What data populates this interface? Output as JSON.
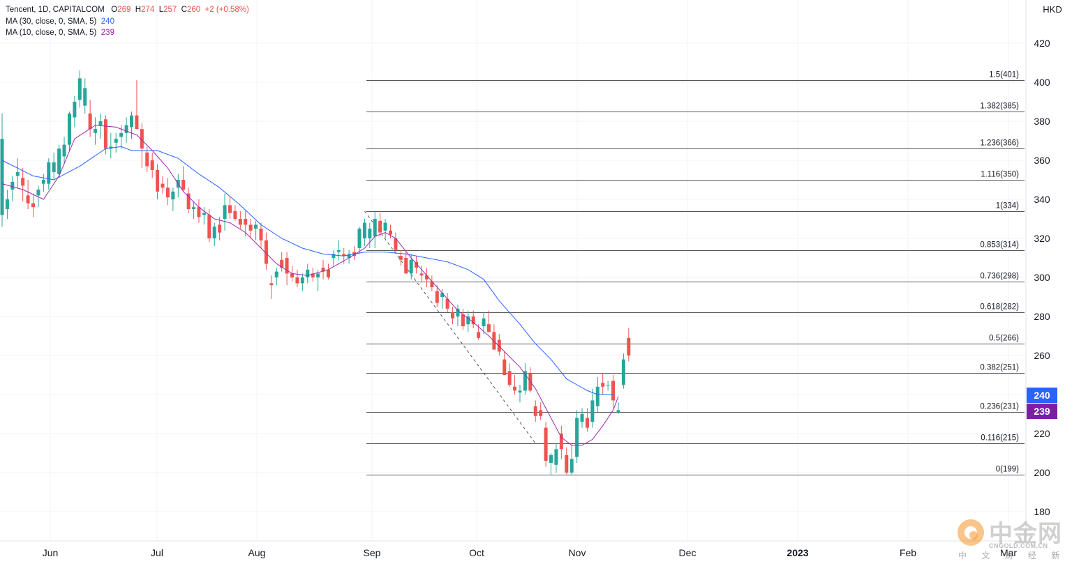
{
  "legend": {
    "symbol": "Tencent, 1D, CAPITALCOM",
    "o_label": "O",
    "o": "269",
    "h_label": "H",
    "h": "274",
    "l_label": "L",
    "l": "257",
    "c_label": "C",
    "c": "260",
    "change": "+2 (+0.58%)",
    "ma30_label": "MA (30, close, 0, SMA, 5)",
    "ma30_value": "240",
    "ma10_label": "MA (10, close, 0, SMA, 5)",
    "ma10_value": "239"
  },
  "watermark": {
    "brand": "中金网",
    "url": "CNGOLD.COM.CN",
    "tagline": "中 文 财 经 新 媒 体"
  },
  "colors": {
    "up": "#26a69a",
    "down": "#ef5350",
    "ma30": "#2962ff",
    "ma10": "#9c27b0",
    "fib_line": "#555555",
    "grid": "#f0f3fa"
  },
  "chart_data": {
    "type": "candlestick",
    "title": "Tencent, 1D, CAPITALCOM",
    "currency": "HKD",
    "y_ticks": [
      180,
      200,
      220,
      240,
      260,
      280,
      300,
      320,
      340,
      360,
      380,
      400,
      420
    ],
    "ylim": [
      173,
      443
    ],
    "x_ticks": [
      "Jun",
      "Jul",
      "Aug",
      "Sep",
      "Oct",
      "Nov",
      "Dec",
      "2023",
      "Feb",
      "Mar"
    ],
    "candles": [
      {
        "o": 332,
        "h": 384,
        "l": 326,
        "c": 371
      },
      {
        "o": 335,
        "h": 345,
        "l": 330,
        "c": 340
      },
      {
        "o": 345,
        "h": 352,
        "l": 339,
        "c": 349
      },
      {
        "o": 352,
        "h": 361,
        "l": 346,
        "c": 354
      },
      {
        "o": 351,
        "h": 356,
        "l": 339,
        "c": 347
      },
      {
        "o": 342,
        "h": 350,
        "l": 335,
        "c": 338
      },
      {
        "o": 338,
        "h": 343,
        "l": 331,
        "c": 336
      },
      {
        "o": 342,
        "h": 347,
        "l": 336,
        "c": 345
      },
      {
        "o": 348,
        "h": 353,
        "l": 344,
        "c": 350
      },
      {
        "o": 348,
        "h": 361,
        "l": 345,
        "c": 359
      },
      {
        "o": 354,
        "h": 364,
        "l": 350,
        "c": 359
      },
      {
        "o": 353,
        "h": 368,
        "l": 351,
        "c": 366
      },
      {
        "o": 362,
        "h": 372,
        "l": 358,
        "c": 368
      },
      {
        "o": 368,
        "h": 385,
        "l": 365,
        "c": 384
      },
      {
        "o": 382,
        "h": 393,
        "l": 377,
        "c": 390
      },
      {
        "o": 391,
        "h": 406,
        "l": 387,
        "c": 402
      },
      {
        "o": 388,
        "h": 402,
        "l": 384,
        "c": 397
      },
      {
        "o": 384,
        "h": 391,
        "l": 372,
        "c": 376
      },
      {
        "o": 374,
        "h": 382,
        "l": 368,
        "c": 376
      },
      {
        "o": 378,
        "h": 384,
        "l": 371,
        "c": 380
      },
      {
        "o": 381,
        "h": 383,
        "l": 363,
        "c": 366
      },
      {
        "o": 366,
        "h": 374,
        "l": 361,
        "c": 367
      },
      {
        "o": 369,
        "h": 374,
        "l": 364,
        "c": 371
      },
      {
        "o": 372,
        "h": 378,
        "l": 366,
        "c": 374
      },
      {
        "o": 374,
        "h": 382,
        "l": 369,
        "c": 378
      },
      {
        "o": 377,
        "h": 385,
        "l": 371,
        "c": 383
      },
      {
        "o": 383,
        "h": 401,
        "l": 376,
        "c": 376
      },
      {
        "o": 376,
        "h": 379,
        "l": 356,
        "c": 366
      },
      {
        "o": 364,
        "h": 367,
        "l": 354,
        "c": 357
      },
      {
        "o": 360,
        "h": 364,
        "l": 351,
        "c": 355
      },
      {
        "o": 355,
        "h": 358,
        "l": 340,
        "c": 344
      },
      {
        "o": 348,
        "h": 352,
        "l": 343,
        "c": 346
      },
      {
        "o": 346,
        "h": 351,
        "l": 337,
        "c": 341
      },
      {
        "o": 340,
        "h": 346,
        "l": 334,
        "c": 344
      },
      {
        "o": 346,
        "h": 353,
        "l": 341,
        "c": 350
      },
      {
        "o": 350,
        "h": 357,
        "l": 344,
        "c": 345
      },
      {
        "o": 343,
        "h": 346,
        "l": 333,
        "c": 335
      },
      {
        "o": 335,
        "h": 339,
        "l": 330,
        "c": 336
      },
      {
        "o": 336,
        "h": 340,
        "l": 328,
        "c": 331
      },
      {
        "o": 332,
        "h": 336,
        "l": 327,
        "c": 333
      },
      {
        "o": 332,
        "h": 335,
        "l": 318,
        "c": 320
      },
      {
        "o": 320,
        "h": 328,
        "l": 316,
        "c": 326
      },
      {
        "o": 327,
        "h": 331,
        "l": 319,
        "c": 323
      },
      {
        "o": 330,
        "h": 343,
        "l": 324,
        "c": 337
      },
      {
        "o": 337,
        "h": 341,
        "l": 330,
        "c": 333
      },
      {
        "o": 334,
        "h": 337,
        "l": 329,
        "c": 330
      },
      {
        "o": 330,
        "h": 334,
        "l": 325,
        "c": 327
      },
      {
        "o": 330,
        "h": 334,
        "l": 321,
        "c": 327
      },
      {
        "o": 327,
        "h": 330,
        "l": 320,
        "c": 324
      },
      {
        "o": 325,
        "h": 329,
        "l": 319,
        "c": 327
      },
      {
        "o": 325,
        "h": 328,
        "l": 315,
        "c": 319
      },
      {
        "o": 319,
        "h": 323,
        "l": 304,
        "c": 307
      },
      {
        "o": 297,
        "h": 301,
        "l": 289,
        "c": 296
      },
      {
        "o": 300,
        "h": 305,
        "l": 296,
        "c": 303
      },
      {
        "o": 309,
        "h": 313,
        "l": 303,
        "c": 305
      },
      {
        "o": 310,
        "h": 313,
        "l": 296,
        "c": 302
      },
      {
        "o": 302,
        "h": 306,
        "l": 298,
        "c": 300
      },
      {
        "o": 300,
        "h": 304,
        "l": 295,
        "c": 297
      },
      {
        "o": 297,
        "h": 302,
        "l": 293,
        "c": 300
      },
      {
        "o": 300,
        "h": 307,
        "l": 297,
        "c": 304
      },
      {
        "o": 302,
        "h": 305,
        "l": 298,
        "c": 300
      },
      {
        "o": 300,
        "h": 304,
        "l": 293,
        "c": 302
      },
      {
        "o": 305,
        "h": 309,
        "l": 299,
        "c": 303
      },
      {
        "o": 304,
        "h": 307,
        "l": 299,
        "c": 300
      },
      {
        "o": 310,
        "h": 314,
        "l": 306,
        "c": 312
      },
      {
        "o": 313,
        "h": 319,
        "l": 309,
        "c": 314
      },
      {
        "o": 312,
        "h": 315,
        "l": 307,
        "c": 311
      },
      {
        "o": 310,
        "h": 314,
        "l": 307,
        "c": 312
      },
      {
        "o": 313,
        "h": 316,
        "l": 309,
        "c": 311
      },
      {
        "o": 315,
        "h": 326,
        "l": 312,
        "c": 325
      },
      {
        "o": 320,
        "h": 330,
        "l": 316,
        "c": 328
      },
      {
        "o": 320,
        "h": 328,
        "l": 315,
        "c": 325
      },
      {
        "o": 321,
        "h": 334,
        "l": 315,
        "c": 330
      },
      {
        "o": 329,
        "h": 333,
        "l": 321,
        "c": 323
      },
      {
        "o": 324,
        "h": 330,
        "l": 320,
        "c": 328
      },
      {
        "o": 324,
        "h": 327,
        "l": 320,
        "c": 322
      },
      {
        "o": 320,
        "h": 323,
        "l": 312,
        "c": 314
      },
      {
        "o": 311,
        "h": 314,
        "l": 306,
        "c": 309
      },
      {
        "o": 310,
        "h": 314,
        "l": 302,
        "c": 302
      },
      {
        "o": 302,
        "h": 312,
        "l": 299,
        "c": 309
      },
      {
        "o": 308,
        "h": 311,
        "l": 302,
        "c": 305
      },
      {
        "o": 302,
        "h": 306,
        "l": 298,
        "c": 301
      },
      {
        "o": 301,
        "h": 305,
        "l": 295,
        "c": 299
      },
      {
        "o": 298,
        "h": 301,
        "l": 293,
        "c": 295
      },
      {
        "o": 293,
        "h": 296,
        "l": 285,
        "c": 287
      },
      {
        "o": 290,
        "h": 294,
        "l": 284,
        "c": 292
      },
      {
        "o": 289,
        "h": 292,
        "l": 282,
        "c": 284
      },
      {
        "o": 282,
        "h": 285,
        "l": 276,
        "c": 279
      },
      {
        "o": 280,
        "h": 286,
        "l": 275,
        "c": 284
      },
      {
        "o": 281,
        "h": 284,
        "l": 273,
        "c": 275
      },
      {
        "o": 276,
        "h": 283,
        "l": 272,
        "c": 280
      },
      {
        "o": 280,
        "h": 283,
        "l": 274,
        "c": 276
      },
      {
        "o": 272,
        "h": 276,
        "l": 268,
        "c": 269
      },
      {
        "o": 275,
        "h": 282,
        "l": 271,
        "c": 279
      },
      {
        "o": 276,
        "h": 283,
        "l": 272,
        "c": 272
      },
      {
        "o": 272,
        "h": 276,
        "l": 263,
        "c": 263
      },
      {
        "o": 268,
        "h": 271,
        "l": 260,
        "c": 262
      },
      {
        "o": 258,
        "h": 262,
        "l": 250,
        "c": 250
      },
      {
        "o": 252,
        "h": 256,
        "l": 244,
        "c": 245
      },
      {
        "o": 244,
        "h": 250,
        "l": 240,
        "c": 242
      },
      {
        "o": 241,
        "h": 245,
        "l": 236,
        "c": 242
      },
      {
        "o": 242,
        "h": 256,
        "l": 240,
        "c": 252
      },
      {
        "o": 251,
        "h": 254,
        "l": 241,
        "c": 242
      },
      {
        "o": 234,
        "h": 237,
        "l": 226,
        "c": 229
      },
      {
        "o": 232,
        "h": 236,
        "l": 227,
        "c": 229
      },
      {
        "o": 223,
        "h": 226,
        "l": 203,
        "c": 206
      },
      {
        "o": 205,
        "h": 210,
        "l": 199,
        "c": 209
      },
      {
        "o": 204,
        "h": 215,
        "l": 200,
        "c": 212
      },
      {
        "o": 220,
        "h": 224,
        "l": 207,
        "c": 212
      },
      {
        "o": 209,
        "h": 213,
        "l": 199,
        "c": 200
      },
      {
        "o": 200,
        "h": 214,
        "l": 199,
        "c": 207
      },
      {
        "o": 208,
        "h": 232,
        "l": 205,
        "c": 228
      },
      {
        "o": 226,
        "h": 233,
        "l": 223,
        "c": 230
      },
      {
        "o": 228,
        "h": 233,
        "l": 221,
        "c": 223
      },
      {
        "o": 226,
        "h": 243,
        "l": 223,
        "c": 237
      },
      {
        "o": 234,
        "h": 249,
        "l": 231,
        "c": 244
      },
      {
        "o": 246,
        "h": 251,
        "l": 240,
        "c": 244
      },
      {
        "o": 245,
        "h": 247,
        "l": 242,
        "c": 245
      },
      {
        "o": 247,
        "h": 250,
        "l": 233,
        "c": 237
      },
      {
        "o": 231,
        "h": 236,
        "l": 230,
        "c": 232
      },
      {
        "o": 245,
        "h": 261,
        "l": 243,
        "c": 258
      },
      {
        "o": 269,
        "h": 274,
        "l": 257,
        "c": 260
      }
    ],
    "series": [
      {
        "name": "MA (30, close, 0, SMA, 5)",
        "values": [
          [
            0,
            360
          ],
          [
            6,
            352
          ],
          [
            10,
            350
          ],
          [
            15,
            357
          ],
          [
            20,
            366
          ],
          [
            23,
            367
          ],
          [
            25,
            365
          ],
          [
            30,
            365
          ],
          [
            34,
            361
          ],
          [
            38,
            353
          ],
          [
            42,
            346
          ],
          [
            46,
            337
          ],
          [
            50,
            327
          ],
          [
            54,
            320
          ],
          [
            58,
            315
          ],
          [
            62,
            312
          ],
          [
            66,
            311
          ],
          [
            70,
            313
          ],
          [
            74,
            313
          ],
          [
            78,
            312
          ],
          [
            82,
            310
          ],
          [
            86,
            308
          ],
          [
            90,
            304
          ],
          [
            93,
            299
          ],
          [
            96,
            288
          ],
          [
            100,
            276
          ],
          [
            103,
            266
          ],
          [
            106,
            258
          ],
          [
            109,
            248
          ],
          [
            111,
            245
          ],
          [
            113,
            242
          ],
          [
            115,
            240
          ],
          [
            118,
            240
          ]
        ]
      },
      {
        "name": "MA (10, close, 0, SMA, 5)",
        "values": [
          [
            0,
            348
          ],
          [
            4,
            345
          ],
          [
            8,
            340
          ],
          [
            11,
            352
          ],
          [
            14,
            371
          ],
          [
            18,
            378
          ],
          [
            22,
            377
          ],
          [
            26,
            373
          ],
          [
            29,
            365
          ],
          [
            32,
            356
          ],
          [
            35,
            344
          ],
          [
            38,
            336
          ],
          [
            41,
            330
          ],
          [
            44,
            328
          ],
          [
            47,
            323
          ],
          [
            50,
            315
          ],
          [
            53,
            307
          ],
          [
            56,
            302
          ],
          [
            59,
            301
          ],
          [
            63,
            304
          ],
          [
            67,
            310
          ],
          [
            70,
            315
          ],
          [
            72,
            321
          ],
          [
            74,
            323
          ],
          [
            76,
            320
          ],
          [
            79,
            310
          ],
          [
            82,
            301
          ],
          [
            85,
            292
          ],
          [
            88,
            283
          ],
          [
            91,
            277
          ],
          [
            94,
            270
          ],
          [
            97,
            262
          ],
          [
            100,
            254
          ],
          [
            103,
            243
          ],
          [
            106,
            228
          ],
          [
            108,
            218
          ],
          [
            110,
            214
          ],
          [
            112,
            214
          ],
          [
            114,
            217
          ],
          [
            116,
            224
          ],
          [
            118,
            232
          ],
          [
            119,
            239
          ]
        ]
      }
    ],
    "fib_levels": [
      {
        "label": "1.5(401)",
        "value": 401
      },
      {
        "label": "1.382(385)",
        "value": 385
      },
      {
        "label": "1.236(366)",
        "value": 366
      },
      {
        "label": "1.116(350)",
        "value": 350
      },
      {
        "label": "1(334)",
        "value": 334
      },
      {
        "label": "0.853(314)",
        "value": 314
      },
      {
        "label": "0.736(298)",
        "value": 298
      },
      {
        "label": "0.618(282)",
        "value": 282
      },
      {
        "label": "0.5(266)",
        "value": 266
      },
      {
        "label": "0.382(251)",
        "value": 251
      },
      {
        "label": "0.236(231)",
        "value": 231
      },
      {
        "label": "0.116(215)",
        "value": 215
      },
      {
        "label": "0(199)",
        "value": 199
      }
    ],
    "fib_start_index": 70,
    "trend_line": {
      "from": [
        70,
        334
      ],
      "to": [
        103,
        215
      ]
    },
    "price_tags": [
      {
        "label": "240",
        "value": 240,
        "color": "#2962ff"
      },
      {
        "label": "239",
        "value": 239,
        "color": "#7b1fa2"
      }
    ]
  }
}
